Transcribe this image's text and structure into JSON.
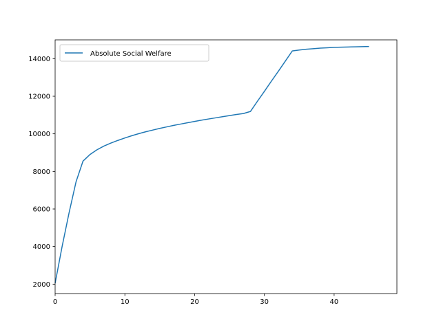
{
  "chart_data": {
    "type": "line",
    "title": "",
    "xlabel": "",
    "ylabel": "",
    "xlim": [
      0,
      49
    ],
    "ylim": [
      1500,
      15000
    ],
    "xticks": [
      0,
      10,
      20,
      30,
      40
    ],
    "yticks": [
      2000,
      4000,
      6000,
      8000,
      10000,
      12000,
      14000
    ],
    "grid": false,
    "legend": {
      "placement": "upper-left",
      "entries": [
        "Absolute Social Welfare"
      ]
    },
    "series": [
      {
        "name": "Absolute Social Welfare",
        "color": "#1f77b4",
        "x": [
          0,
          1,
          2,
          3,
          4,
          5,
          6,
          7,
          8,
          9,
          10,
          11,
          12,
          13,
          14,
          15,
          16,
          17,
          18,
          19,
          20,
          21,
          22,
          23,
          24,
          25,
          26,
          27,
          28,
          29,
          30,
          31,
          32,
          33,
          34,
          35,
          36,
          37,
          38,
          39,
          40,
          41,
          42,
          43,
          44,
          45
        ],
        "y": [
          2050,
          4000,
          5800,
          7450,
          8550,
          8900,
          9150,
          9350,
          9510,
          9650,
          9780,
          9900,
          10010,
          10110,
          10200,
          10290,
          10370,
          10450,
          10520,
          10590,
          10660,
          10730,
          10790,
          10850,
          10910,
          10970,
          11030,
          11080,
          11190,
          11730,
          12260,
          12800,
          13330,
          13870,
          14410,
          14460,
          14500,
          14530,
          14560,
          14580,
          14600,
          14610,
          14620,
          14630,
          14640,
          14650
        ]
      }
    ]
  }
}
